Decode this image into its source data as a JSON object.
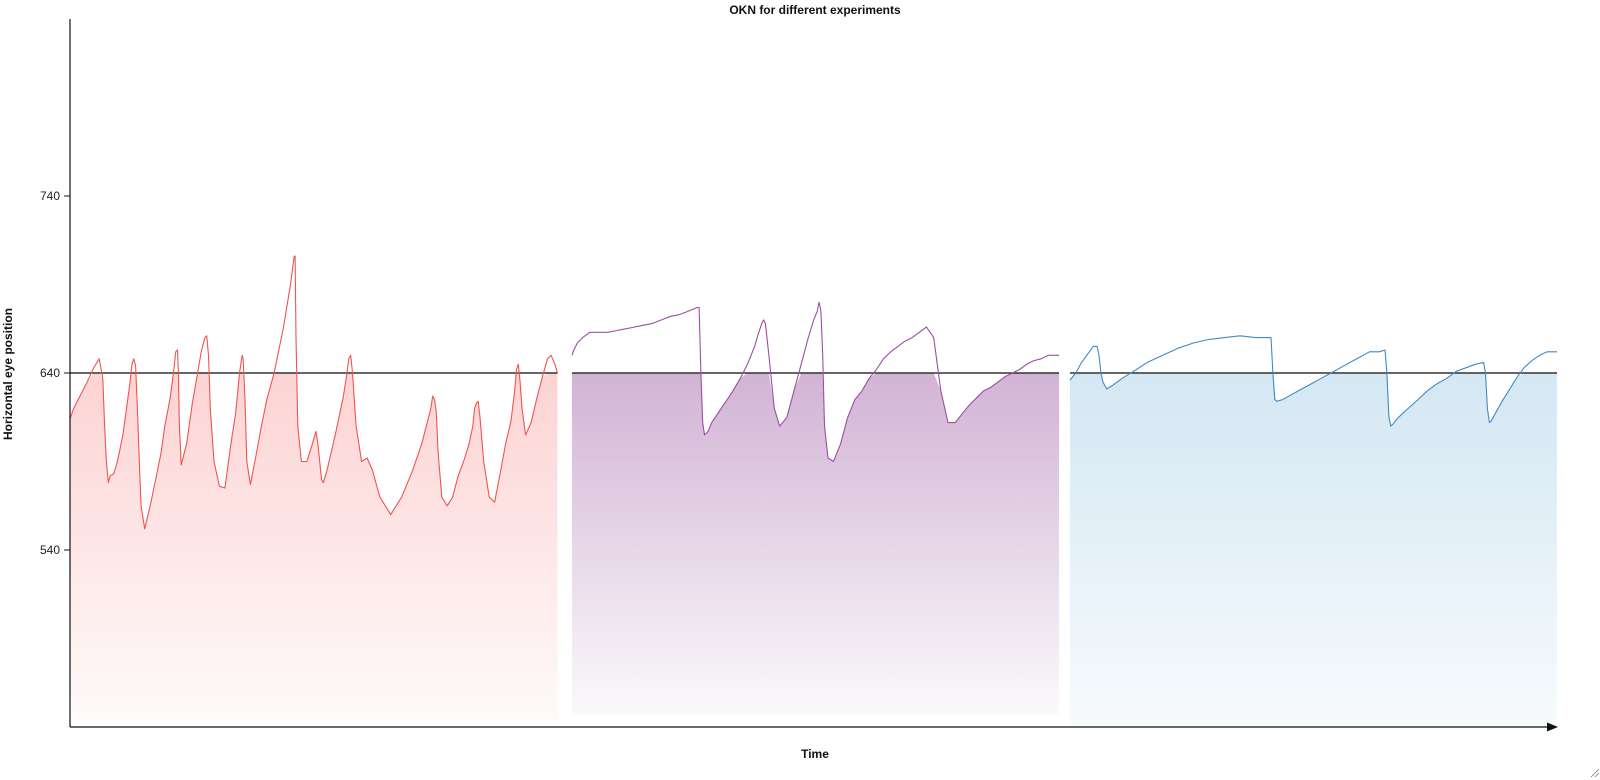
{
  "chart_data": {
    "type": "area",
    "title": "OKN for different experiments",
    "xlabel": "Time",
    "ylabel": "Horizontal eye position",
    "ylim": [
      440,
      840
    ],
    "yticks": [
      540,
      640,
      740
    ],
    "baseline": 640,
    "grid": false,
    "x_tick_labels": false,
    "series": [
      {
        "color": "#f0544f",
        "fill_top": "#fdd3d3",
        "fill_bottom": "#fefafa",
        "x": [
          0,
          2,
          5,
          9,
          13,
          16,
          18,
          19,
          20,
          21,
          22,
          24,
          26,
          29,
          31,
          33,
          34,
          35,
          36,
          37,
          38,
          39,
          41,
          44,
          47,
          50,
          52,
          55,
          57,
          58,
          59,
          59.5,
          60,
          61,
          64,
          67,
          70,
          72,
          74,
          75,
          76,
          77,
          79,
          82,
          85,
          88,
          91,
          93,
          94.5,
          95,
          96,
          97,
          99,
          102,
          105,
          108,
          112,
          117,
          121,
          123,
          123.5,
          124,
          125,
          127,
          130,
          133,
          135,
          136,
          137,
          138,
          139,
          141,
          144,
          147,
          150,
          152,
          153,
          154,
          155,
          157,
          160,
          163,
          166,
          170,
          176,
          182,
          188,
          193,
          196,
          198,
          199,
          200,
          201,
          202,
          204,
          207,
          210,
          213,
          216,
          219,
          221,
          222,
          223,
          224,
          225,
          227,
          230,
          233,
          236,
          239,
          242,
          244,
          245,
          246,
          247,
          248,
          250,
          253,
          256,
          259,
          262,
          264,
          266,
          267.5
        ],
        "y": [
          614,
          620,
          626,
          634,
          643,
          648,
          637,
          610,
          590,
          578,
          582,
          583,
          590,
          605,
          620,
          635,
          645,
          648,
          644,
          620,
          590,
          565,
          552,
          565,
          580,
          595,
          610,
          626,
          642,
          652,
          653,
          640,
          612,
          588,
          600,
          622,
          640,
          652,
          660,
          661,
          650,
          620,
          590,
          576,
          575,
          598,
          618,
          640,
          650,
          648,
          625,
          590,
          577,
          593,
          610,
          625,
          640,
          665,
          690,
          706,
          706,
          660,
          610,
          590,
          590,
          600,
          607,
          600,
          590,
          580,
          578,
          585,
          598,
          612,
          627,
          640,
          648,
          650,
          640,
          610,
          590,
          592,
          585,
          570,
          560,
          570,
          585,
          600,
          612,
          620,
          627,
          625,
          618,
          595,
          570,
          565,
          570,
          582,
          590,
          600,
          610,
          620,
          623,
          624,
          615,
          590,
          570,
          567,
          583,
          600,
          613,
          630,
          642,
          645,
          635,
          620,
          605,
          612,
          625,
          637,
          648,
          650,
          645,
          640
        ]
      },
      {
        "color": "#9b4ea3",
        "fill_top": "#d2b3d5",
        "fill_bottom": "#fbf9fb",
        "x": [
          0,
          1,
          3,
          6,
          10,
          15,
          20,
          25,
          30,
          35,
          40,
          45,
          50,
          55,
          60,
          65,
          70,
          71,
          72,
          73,
          74,
          76,
          78,
          82,
          86,
          90,
          94,
          98,
          102,
          104,
          106,
          107,
          108,
          110,
          113,
          116,
          120,
          124,
          128,
          132,
          135,
          137,
          138,
          139,
          140,
          141,
          143,
          146,
          150,
          154,
          158,
          162,
          166,
          170,
          174,
          178,
          182,
          186,
          190,
          194,
          198,
          202,
          206,
          210,
          214,
          218,
          222,
          226,
          230,
          234,
          238,
          242,
          246,
          250,
          254,
          258,
          262,
          266,
          268,
          270,
          272
        ],
        "y": [
          650,
          653,
          657,
          660,
          663,
          663,
          663,
          664,
          665,
          666,
          667,
          668,
          670,
          672,
          673,
          675,
          677,
          677,
          640,
          612,
          605,
          607,
          612,
          618,
          624,
          630,
          637,
          645,
          655,
          662,
          668,
          670,
          668,
          650,
          620,
          610,
          615,
          630,
          645,
          660,
          670,
          675,
          680,
          675,
          650,
          610,
          592,
          590,
          600,
          615,
          625,
          630,
          637,
          642,
          648,
          652,
          655,
          658,
          660,
          663,
          666,
          660,
          630,
          612,
          612,
          617,
          622,
          626,
          630,
          632,
          635,
          638,
          640,
          642,
          645,
          647,
          648,
          650,
          650,
          650,
          650
        ]
      },
      {
        "color": "#3f8ac6",
        "fill_top": "#d4e7f3",
        "fill_bottom": "#f7fbfd",
        "x": [
          0,
          3,
          6,
          10,
          12,
          14,
          15,
          16,
          17,
          19,
          22,
          27,
          33,
          40,
          48,
          56,
          64,
          72,
          80,
          88,
          96,
          102,
          104,
          105,
          106,
          107,
          110,
          115,
          120,
          125,
          130,
          135,
          140,
          145,
          150,
          155,
          160,
          163,
          164,
          165,
          166,
          167,
          170,
          175,
          180,
          185,
          190,
          195,
          200,
          205,
          210,
          214,
          215,
          216,
          217,
          218,
          220,
          223,
          227,
          231,
          235,
          239,
          243,
          247,
          250,
          252
        ],
        "y": [
          636,
          640,
          646,
          652,
          655,
          655,
          650,
          640,
          635,
          631,
          633,
          637,
          641,
          646,
          650,
          654,
          657,
          659,
          660,
          661,
          660,
          660,
          660,
          640,
          625,
          624,
          625,
          628,
          631,
          634,
          637,
          640,
          643,
          646,
          649,
          652,
          652,
          653,
          640,
          615,
          610,
          611,
          615,
          620,
          625,
          630,
          634,
          637,
          641,
          643,
          645,
          646,
          640,
          620,
          612,
          613,
          617,
          623,
          630,
          637,
          643,
          647,
          650,
          652,
          652,
          652
        ]
      }
    ]
  }
}
